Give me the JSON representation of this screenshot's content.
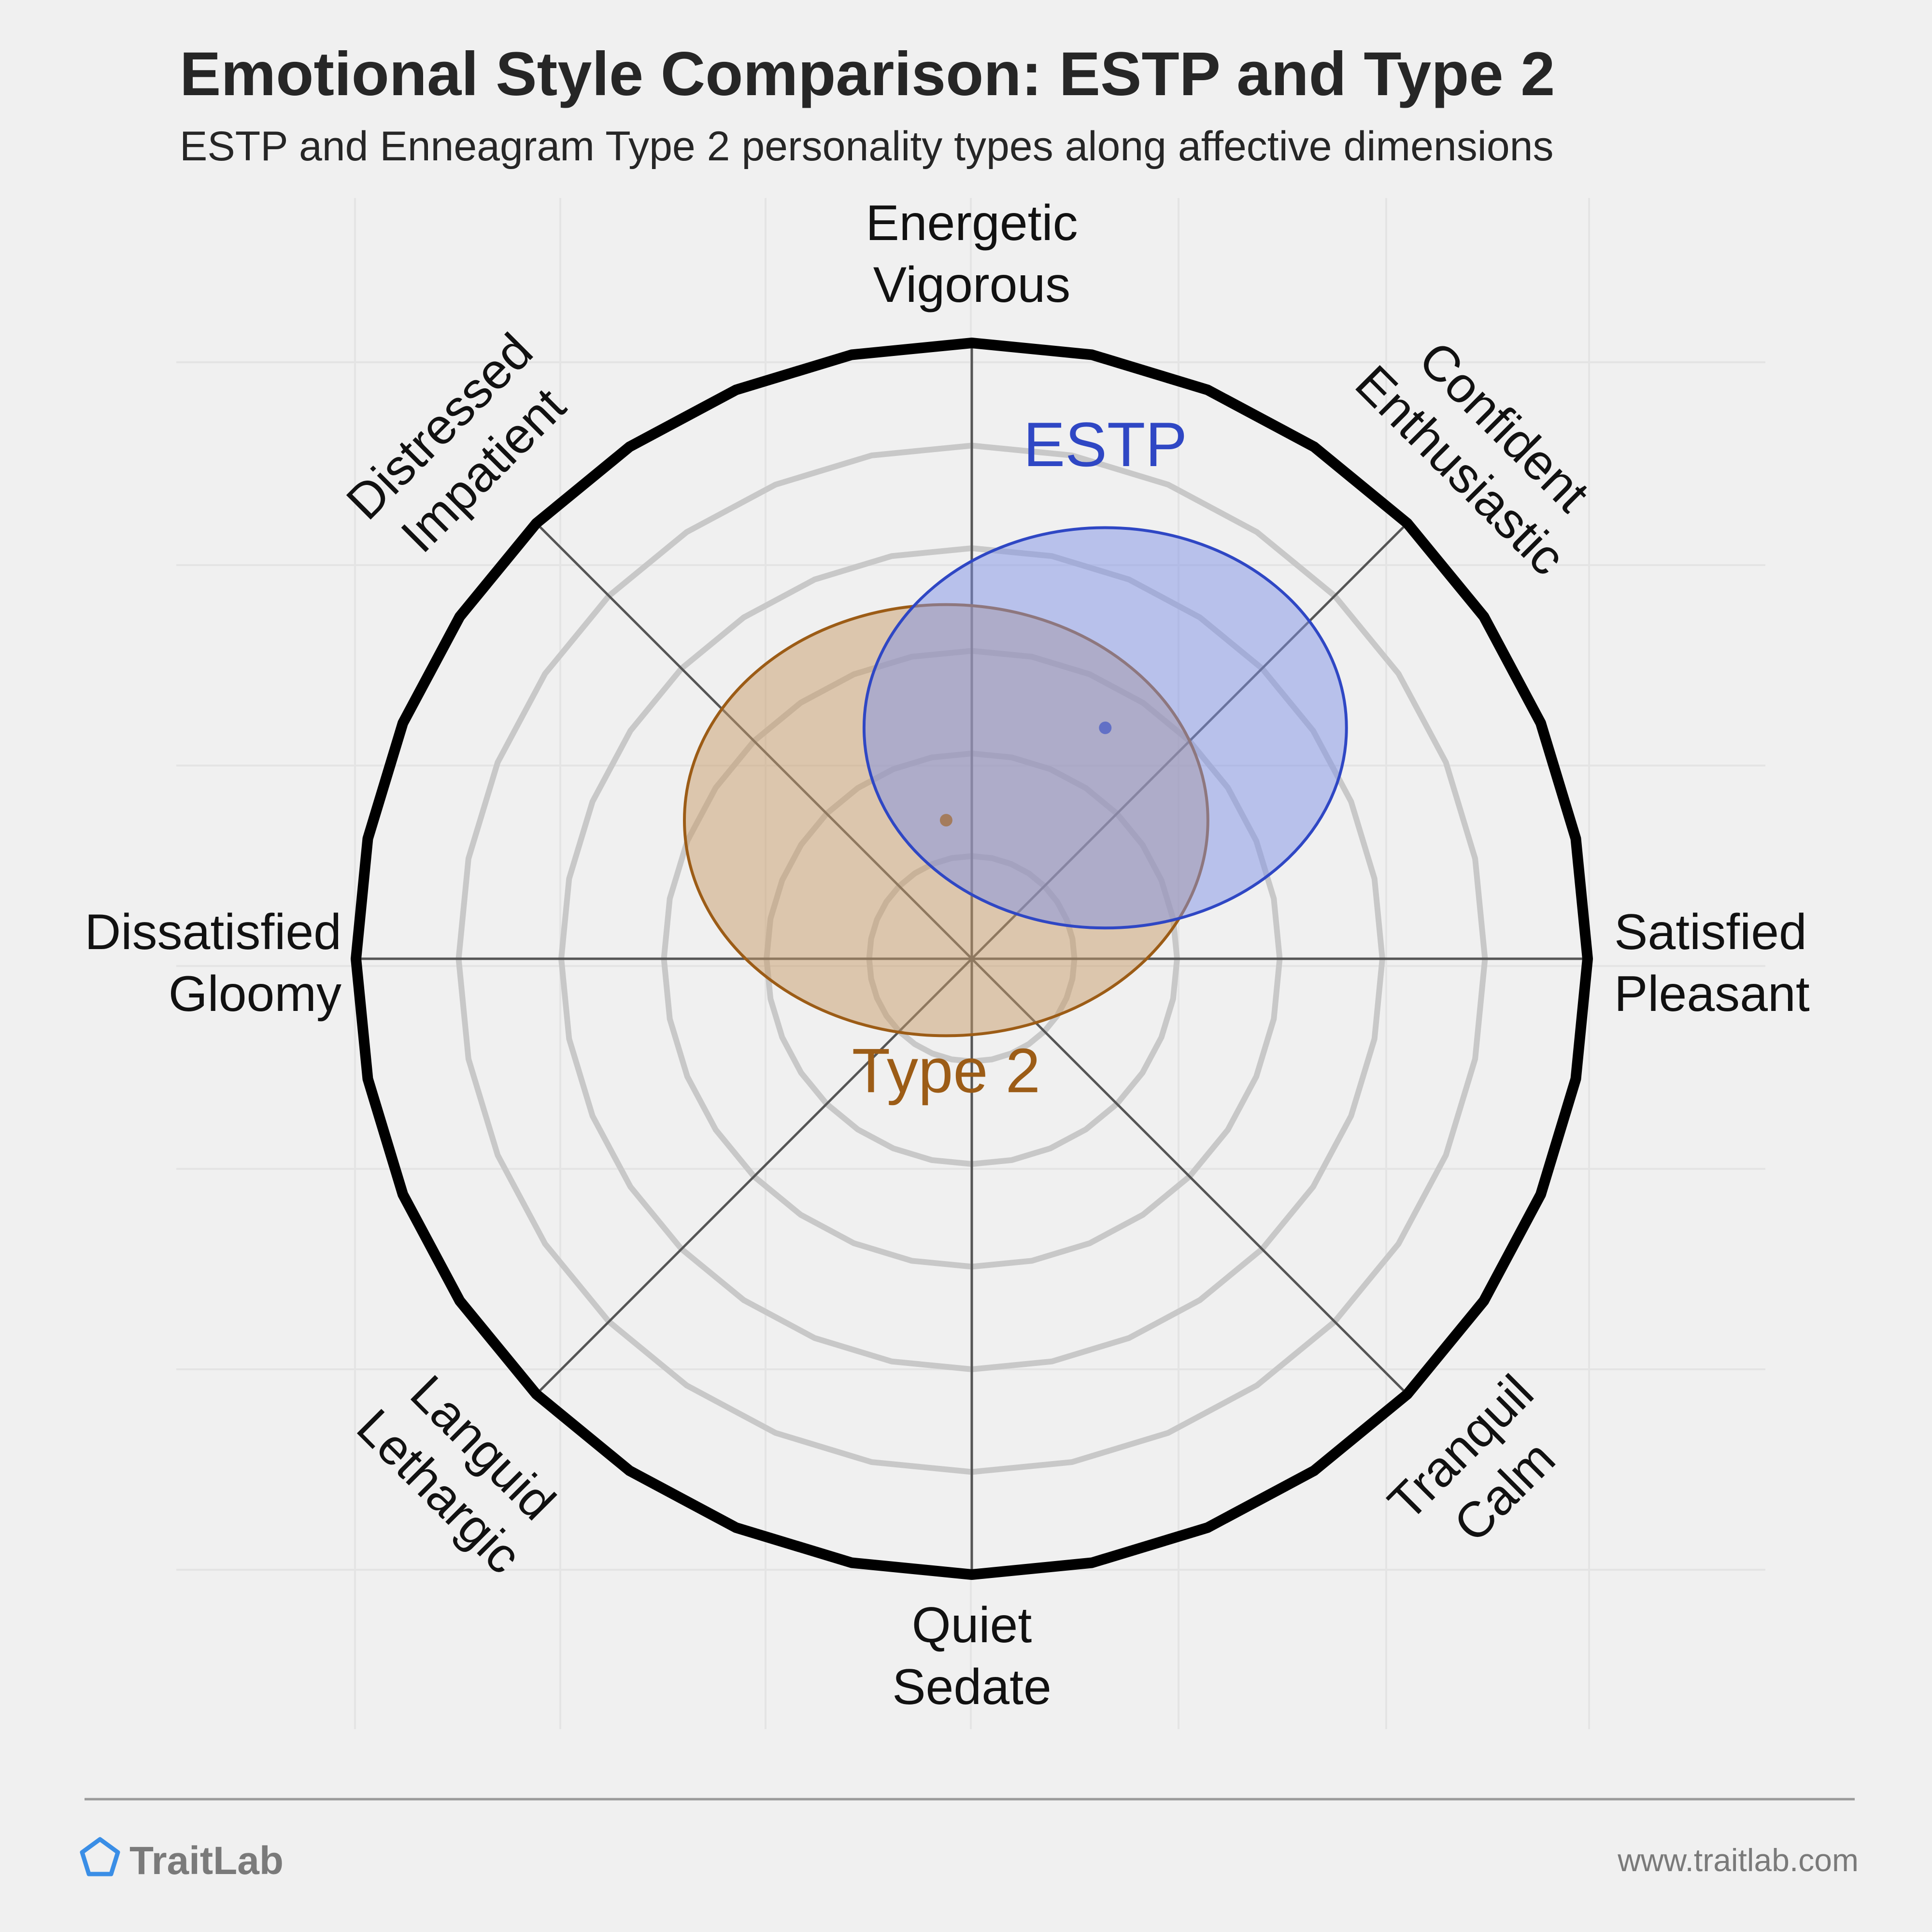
{
  "header": {
    "title": "Emotional Style Comparison: ESTP and Type 2",
    "subtitle": "ESTP and Enneagram Type 2 personality types along affective dimensions"
  },
  "chart_data": {
    "type": "scatter",
    "title": "Emotional Style Comparison: ESTP and Type 2",
    "subtitle": "ESTP and Enneagram Type 2 personality types along affective dimensions",
    "x_axis": {
      "negative": "Dissatisfied\nGloomy",
      "positive": "Satisfied\nPleasant"
    },
    "y_axis": {
      "negative": "Quiet\nSedate",
      "positive": "Energetic\nVigorous"
    },
    "xlim": [
      -6,
      6
    ],
    "ylim": [
      -6,
      6
    ],
    "rings": [
      1,
      2,
      3,
      4,
      5,
      6
    ],
    "grid": true,
    "axes": [
      {
        "id": "energetic",
        "angle_deg": 90,
        "lines": [
          "Energetic",
          "Vigorous"
        ]
      },
      {
        "id": "confident",
        "angle_deg": 45,
        "lines": [
          "Confident",
          "Enthusiastic"
        ]
      },
      {
        "id": "satisfied",
        "angle_deg": 0,
        "lines": [
          "Satisfied",
          "Pleasant"
        ]
      },
      {
        "id": "tranquil",
        "angle_deg": -45,
        "lines": [
          "Tranquil",
          "Calm"
        ]
      },
      {
        "id": "quiet",
        "angle_deg": -90,
        "lines": [
          "Quiet",
          "Sedate"
        ]
      },
      {
        "id": "languid",
        "angle_deg": -135,
        "lines": [
          "Languid",
          "Lethargic"
        ]
      },
      {
        "id": "dissatisfied",
        "angle_deg": 180,
        "lines": [
          "Dissatisfied",
          "Gloomy"
        ]
      },
      {
        "id": "distressed",
        "angle_deg": 135,
        "lines": [
          "Distressed",
          "Impatient"
        ]
      }
    ],
    "series": [
      {
        "name": "ESTP",
        "x": 1.3,
        "y": 2.25,
        "rx": 2.35,
        "ry": 1.95,
        "color": "#2f47c4",
        "fill": "#7f91e6",
        "label_pos": [
          1.3,
          4.8
        ]
      },
      {
        "name": "Type 2",
        "x": -0.25,
        "y": 1.35,
        "rx": 2.55,
        "ry": 2.1,
        "color": "#9c5c16",
        "fill": "#c79c6a",
        "label_pos": [
          -0.25,
          -1.3
        ]
      }
    ]
  },
  "footer": {
    "brand": "TraitLab",
    "url": "www.traitlab.com"
  },
  "colors": {
    "background": "#f0f0f0",
    "outer_ring": "#000000",
    "inner_rings": "#c8c8c8",
    "axes": "#555555",
    "brand_icon": "#3a8ee6"
  },
  "icons": {
    "brand": "pentagon-icon"
  }
}
